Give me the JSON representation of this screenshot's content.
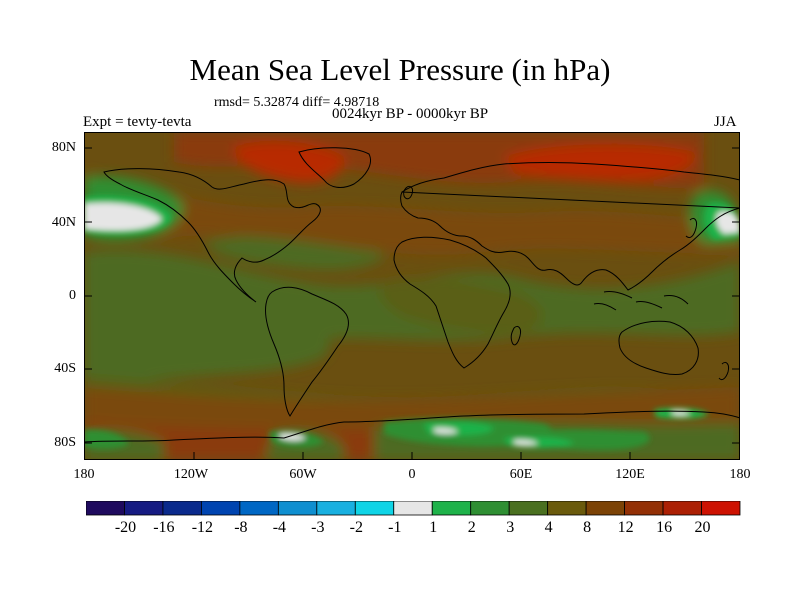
{
  "title": "Mean Sea Level Pressure (in hPa)",
  "stats": "rmsd= 5.32874 diff= 4.98718",
  "period": "0024kyr BP - 0000kyr BP",
  "experiment": "Expt = tevty-tevta",
  "season": "JJA",
  "y_axis_labels": [
    "80N",
    "40N",
    "0",
    "40S",
    "80S"
  ],
  "x_axis_labels": [
    "180",
    "120W",
    "60W",
    "0",
    "60E",
    "120E",
    "180"
  ],
  "colorbar": {
    "labels": [
      "-20",
      "-16",
      "-12",
      "-8",
      "-4",
      "-3",
      "-2",
      "-1",
      "1",
      "2",
      "3",
      "4",
      "8",
      "12",
      "16",
      "20"
    ],
    "colors": [
      "#1f0a5e",
      "#161b82",
      "#0a2a8c",
      "#0044b0",
      "#0067c4",
      "#0f8fd0",
      "#19b0e0",
      "#10d4e6",
      "#e6e6e6",
      "#1eb24a",
      "#2f8f33",
      "#4a7020",
      "#6a5a0c",
      "#7c4306",
      "#933005",
      "#ac2004",
      "#cd1202"
    ]
  },
  "map_colors": {
    "background": "#6a4f10",
    "olive": "#4d6a20",
    "olive_dark": "#5a5e16",
    "brown_light": "#7a4a10",
    "brown_red": "#8a3a08",
    "red": "#b82a06",
    "green": "#2f8f33",
    "green_bright": "#1eb24a",
    "white": "#e6e6e6"
  }
}
